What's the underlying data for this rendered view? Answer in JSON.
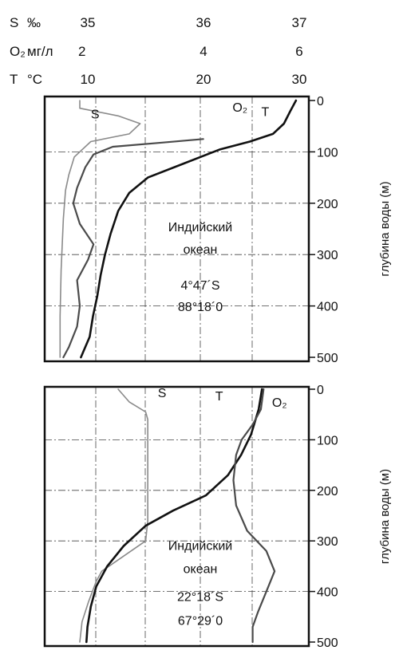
{
  "scales": [
    {
      "symbol": "S",
      "unit": "‰",
      "ticks": [
        "35",
        "36",
        "37"
      ]
    },
    {
      "symbol": "O₂",
      "unit": "мг/л",
      "ticks": [
        "2",
        "4",
        "6"
      ]
    },
    {
      "symbol": "T",
      "unit": "°C",
      "ticks": [
        "10",
        "20",
        "30"
      ]
    }
  ],
  "colors": {
    "S": "#8a8a8a",
    "O2": "#4a4a4a",
    "T": "#111111"
  },
  "chart_data": [
    {
      "type": "line",
      "location": [
        "Индийский",
        "океан",
        "4°47´S",
        "88°18´0"
      ],
      "ylabel": "глубина воды (м)",
      "y_ticks": [
        "0",
        "100",
        "200",
        "300",
        "400",
        "500"
      ],
      "ylim": [
        0,
        500
      ],
      "x_ranges": {
        "S": [
          35,
          37
        ],
        "O2": [
          2,
          6
        ],
        "T": [
          10,
          30
        ]
      },
      "series": [
        {
          "name": "S",
          "key": "S",
          "points": [
            [
              35.0,
              0
            ],
            [
              35.0,
              15
            ],
            [
              35.35,
              30
            ],
            [
              35.55,
              45
            ],
            [
              35.45,
              65
            ],
            [
              35.1,
              80
            ],
            [
              34.95,
              110
            ],
            [
              34.9,
              145
            ],
            [
              34.87,
              175
            ],
            [
              34.85,
              230
            ],
            [
              34.83,
              330
            ],
            [
              34.82,
              420
            ],
            [
              34.82,
              500
            ]
          ]
        },
        {
          "name": "O₂",
          "key": "O2",
          "points": [
            [
              4.25,
              75
            ],
            [
              3.5,
              82
            ],
            [
              2.6,
              90
            ],
            [
              2.25,
              105
            ],
            [
              2.1,
              130
            ],
            [
              1.95,
              170
            ],
            [
              1.88,
              200
            ],
            [
              2.0,
              240
            ],
            [
              2.25,
              280
            ],
            [
              2.15,
              310
            ],
            [
              1.95,
              350
            ],
            [
              2.0,
              400
            ],
            [
              1.95,
              440
            ],
            [
              1.8,
              480
            ],
            [
              1.7,
              500
            ]
          ]
        },
        {
          "name": "T",
          "key": "T",
          "points": [
            [
              29.7,
              0
            ],
            [
              29.2,
              20
            ],
            [
              28.6,
              45
            ],
            [
              27.6,
              65
            ],
            [
              25.5,
              80
            ],
            [
              22.8,
              95
            ],
            [
              19.2,
              125
            ],
            [
              16.2,
              150
            ],
            [
              14.5,
              180
            ],
            [
              13.5,
              215
            ],
            [
              12.8,
              260
            ],
            [
              12.3,
              300
            ],
            [
              11.9,
              340
            ],
            [
              11.6,
              380
            ],
            [
              11.2,
              420
            ],
            [
              10.9,
              460
            ],
            [
              10.3,
              490
            ],
            [
              10.1,
              500
            ]
          ]
        }
      ]
    },
    {
      "type": "line",
      "location": [
        "Индийский",
        "океан",
        "22°18´S",
        "67°29´0"
      ],
      "ylabel": "глубина воды (м)",
      "y_ticks": [
        "0",
        "100",
        "200",
        "300",
        "400",
        "500"
      ],
      "ylim": [
        0,
        500
      ],
      "x_ranges": {
        "S": [
          35,
          37
        ],
        "O2": [
          2,
          6
        ],
        "T": [
          10,
          30
        ]
      },
      "series": [
        {
          "name": "S",
          "key": "S",
          "points": [
            [
              35.35,
              0
            ],
            [
              35.45,
              25
            ],
            [
              35.6,
              45
            ],
            [
              35.62,
              60
            ],
            [
              35.62,
              120
            ],
            [
              35.62,
              200
            ],
            [
              35.62,
              260
            ],
            [
              35.6,
              300
            ],
            [
              35.4,
              330
            ],
            [
              35.2,
              360
            ],
            [
              35.15,
              380
            ],
            [
              35.08,
              420
            ],
            [
              35.02,
              460
            ],
            [
              35.0,
              500
            ]
          ]
        },
        {
          "name": "T",
          "key": "T",
          "points": [
            [
              26.6,
              0
            ],
            [
              26.3,
              40
            ],
            [
              25.6,
              90
            ],
            [
              24.7,
              130
            ],
            [
              23.5,
              170
            ],
            [
              21.5,
              210
            ],
            [
              18.5,
              240
            ],
            [
              16.0,
              270
            ],
            [
              14.0,
              310
            ],
            [
              12.5,
              350
            ],
            [
              11.5,
              390
            ],
            [
              11.0,
              430
            ],
            [
              10.7,
              470
            ],
            [
              10.6,
              500
            ]
          ]
        },
        {
          "name": "O₂",
          "key": "O2",
          "points": [
            [
              5.35,
              0
            ],
            [
              5.3,
              40
            ],
            [
              5.15,
              70
            ],
            [
              4.95,
              100
            ],
            [
              4.85,
              130
            ],
            [
              4.8,
              180
            ],
            [
              4.85,
              230
            ],
            [
              5.05,
              280
            ],
            [
              5.4,
              320
            ],
            [
              5.55,
              360
            ],
            [
              5.4,
              400
            ],
            [
              5.25,
              440
            ],
            [
              5.15,
              470
            ],
            [
              5.15,
              500
            ]
          ]
        }
      ]
    }
  ],
  "annotations": [
    [
      {
        "series": "S",
        "text": "S",
        "depth": 35,
        "value": 11.4,
        "scale": "T"
      },
      {
        "series": "O2",
        "text": "O₂",
        "depth": 22,
        "value": 24.6,
        "scale": "T"
      },
      {
        "series": "T",
        "text": "T",
        "depth": 30,
        "value": 26.9,
        "scale": "T"
      }
    ],
    [
      {
        "series": "S",
        "text": "S",
        "depth": 16,
        "value": 17.5,
        "scale": "T"
      },
      {
        "series": "T",
        "text": "T",
        "depth": 22,
        "value": 22.7,
        "scale": "T"
      },
      {
        "series": "O2",
        "text": "O₂",
        "depth": 35,
        "value": 28.2,
        "scale": "T"
      }
    ]
  ]
}
